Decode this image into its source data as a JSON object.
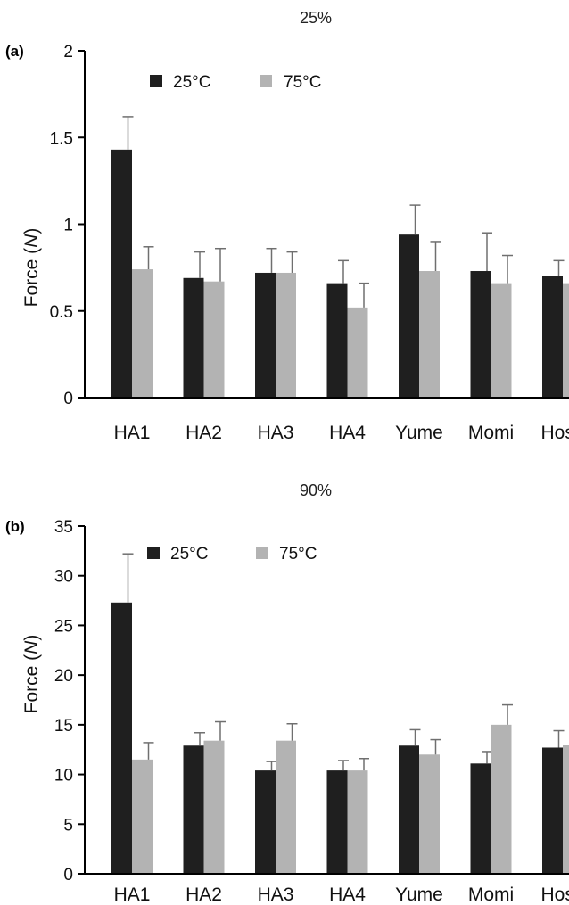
{
  "chart_data": [
    {
      "type": "bar",
      "panel_label": "(a)",
      "title": "25%",
      "ylabel": "Force (N)",
      "ylabel_prefix": "Force (",
      "ylabel_unit": "N",
      "ylabel_suffix": ")",
      "ylim": [
        0,
        2
      ],
      "yticks": [
        0,
        0.5,
        1,
        1.5,
        2
      ],
      "ytick_labels": [
        "0",
        "0.5",
        "1",
        "1.5",
        "2"
      ],
      "categories": [
        "HA1",
        "HA2",
        "HA3",
        "HA4",
        "Yume",
        "Momi",
        "Hosh"
      ],
      "legend_position": "top-left",
      "grid": false,
      "series": [
        {
          "name": "25°C",
          "color": "#1f1f1f",
          "values": [
            1.43,
            0.69,
            0.72,
            0.66,
            0.94,
            0.73,
            0.7
          ],
          "errors": [
            0.19,
            0.15,
            0.14,
            0.13,
            0.17,
            0.22,
            0.09
          ]
        },
        {
          "name": "75°C",
          "color": "#b3b3b3",
          "values": [
            0.74,
            0.67,
            0.72,
            0.52,
            0.73,
            0.66,
            0.66
          ],
          "errors": [
            0.13,
            0.19,
            0.12,
            0.14,
            0.17,
            0.16,
            0.12
          ]
        }
      ]
    },
    {
      "type": "bar",
      "panel_label": "(b)",
      "title": "90%",
      "ylabel": "Force (N)",
      "ylabel_prefix": "Force (",
      "ylabel_unit": "N",
      "ylabel_suffix": ")",
      "ylim": [
        0,
        35
      ],
      "yticks": [
        0,
        5,
        10,
        15,
        20,
        25,
        30,
        35
      ],
      "ytick_labels": [
        "0",
        "5",
        "10",
        "15",
        "20",
        "25",
        "30",
        "35"
      ],
      "categories": [
        "HA1",
        "HA2",
        "HA3",
        "HA4",
        "Yume",
        "Momi",
        "Hosh"
      ],
      "legend_position": "top-left",
      "grid": false,
      "series": [
        {
          "name": "25°C",
          "color": "#1f1f1f",
          "values": [
            27.3,
            12.9,
            10.4,
            10.4,
            12.9,
            11.1,
            12.7
          ],
          "errors": [
            4.9,
            1.3,
            0.9,
            1.0,
            1.6,
            1.2,
            1.7
          ]
        },
        {
          "name": "75°C",
          "color": "#b3b3b3",
          "values": [
            11.5,
            13.4,
            13.4,
            10.4,
            12.0,
            15.0,
            13.0
          ],
          "errors": [
            1.7,
            1.9,
            1.7,
            1.2,
            1.5,
            2.0,
            0.6
          ]
        }
      ]
    }
  ]
}
